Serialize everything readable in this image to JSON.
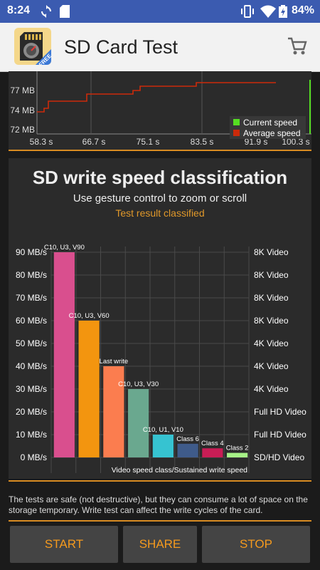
{
  "status_bar": {
    "time": "8:24",
    "battery": "84%"
  },
  "app": {
    "title": "SD Card Test",
    "logo_badge": "FREE"
  },
  "speed_chart": {
    "y_labels": [
      "77 MB",
      "74 MB",
      "72 MB"
    ],
    "x_labels": [
      "58.3 s",
      "66.7 s",
      "75.1 s",
      "83.5 s",
      "91.9 s",
      "100.3 s"
    ],
    "legend": [
      {
        "label": "Current speed",
        "color": "#55dd22"
      },
      {
        "label": "Average speed",
        "color": "#cc2a0a"
      }
    ]
  },
  "classification": {
    "title": "SD write speed classification",
    "subtitle": "Use gesture control to zoom or scroll",
    "status": "Test result classified"
  },
  "chart_data": {
    "type": "bar",
    "categories": [
      "C10, U3, V90",
      "C10, U3, V60",
      "Last write",
      "C10, U3, V30",
      "C10, U1, V10",
      "Class 6",
      "Class 4",
      "Class 2"
    ],
    "values": [
      90,
      60,
      40,
      30,
      10,
      6,
      4,
      2
    ],
    "colors": [
      "#d94f8e",
      "#f3950f",
      "#fb7d4f",
      "#6aa88f",
      "#36c3d1",
      "#3f5b8a",
      "#c81d55",
      "#a6f287"
    ],
    "ylim": [
      0,
      90
    ],
    "y_ticks": [
      "0 MB/s",
      "10 MB/s",
      "20 MB/s",
      "30 MB/s",
      "40 MB/s",
      "50 MB/s",
      "60 MB/s",
      "70 MB/s",
      "80 MB/s",
      "90 MB/s"
    ],
    "y_right_ticks": [
      "SD/HD Video",
      "Full HD Video",
      "Full HD Video",
      "4K Video",
      "4K Video",
      "4K Video",
      "8K Video",
      "8K Video",
      "8K Video",
      "8K Video"
    ],
    "xlabel": "Video speed class/Sustained write speed",
    "grid": true
  },
  "note": "The tests are safe (not destructive), but they can consume a lot of space on the storage temporary. Write test can affect the write cycles of the card.",
  "buttons": {
    "start": "START",
    "share": "SHARE",
    "stop": "STOP"
  },
  "colors": {
    "accent": "#f59a1e",
    "status_bar": "#3b5bb0"
  }
}
